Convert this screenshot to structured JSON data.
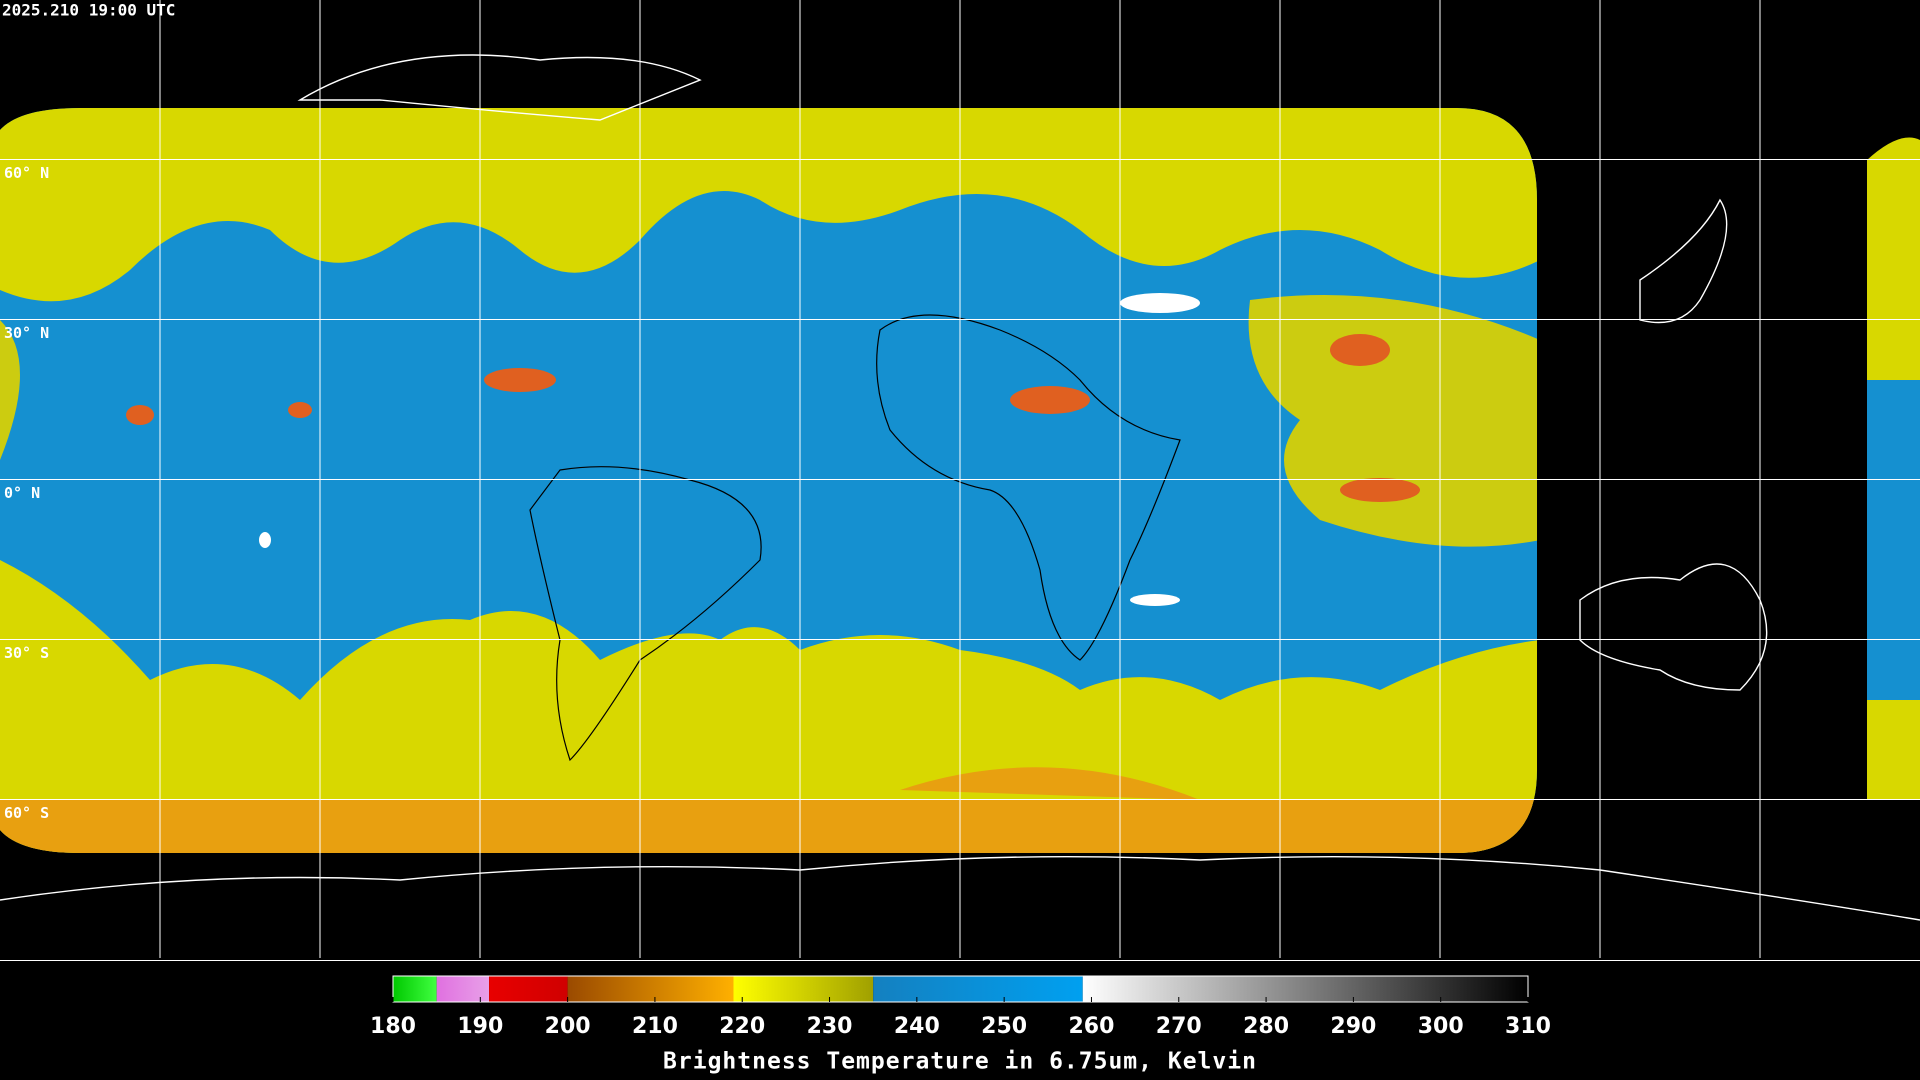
{
  "header": {
    "title": "2025.210 19:00 UTC"
  },
  "map": {
    "lat_labels": [
      "60° N",
      "30° N",
      "0° N",
      "30° S",
      "60° S"
    ]
  },
  "colorbar": {
    "lim": [
      180,
      310
    ],
    "ticks": [
      180,
      190,
      200,
      210,
      220,
      230,
      240,
      250,
      260,
      270,
      280,
      290,
      300,
      310
    ],
    "segments": [
      {
        "from": 180,
        "to": 185,
        "colors": [
          "#00c800",
          "#40ff40"
        ]
      },
      {
        "from": 185,
        "to": 191,
        "colors": [
          "#e070e0",
          "#e8a0e8"
        ]
      },
      {
        "from": 191,
        "to": 200,
        "colors": [
          "#e80000",
          "#d00000"
        ]
      },
      {
        "from": 200,
        "to": 219,
        "colors": [
          "#9a4a00",
          "#ffb000"
        ]
      },
      {
        "from": 219,
        "to": 235,
        "colors": [
          "#ffff00",
          "#a0a000"
        ]
      },
      {
        "from": 235,
        "to": 259,
        "colors": [
          "#1480c0",
          "#00a0f0"
        ]
      },
      {
        "from": 259,
        "to": 310,
        "colors": [
          "#ffffff",
          "#000000"
        ]
      }
    ],
    "label": "Brightness Temperature in 6.75um, Kelvin"
  }
}
